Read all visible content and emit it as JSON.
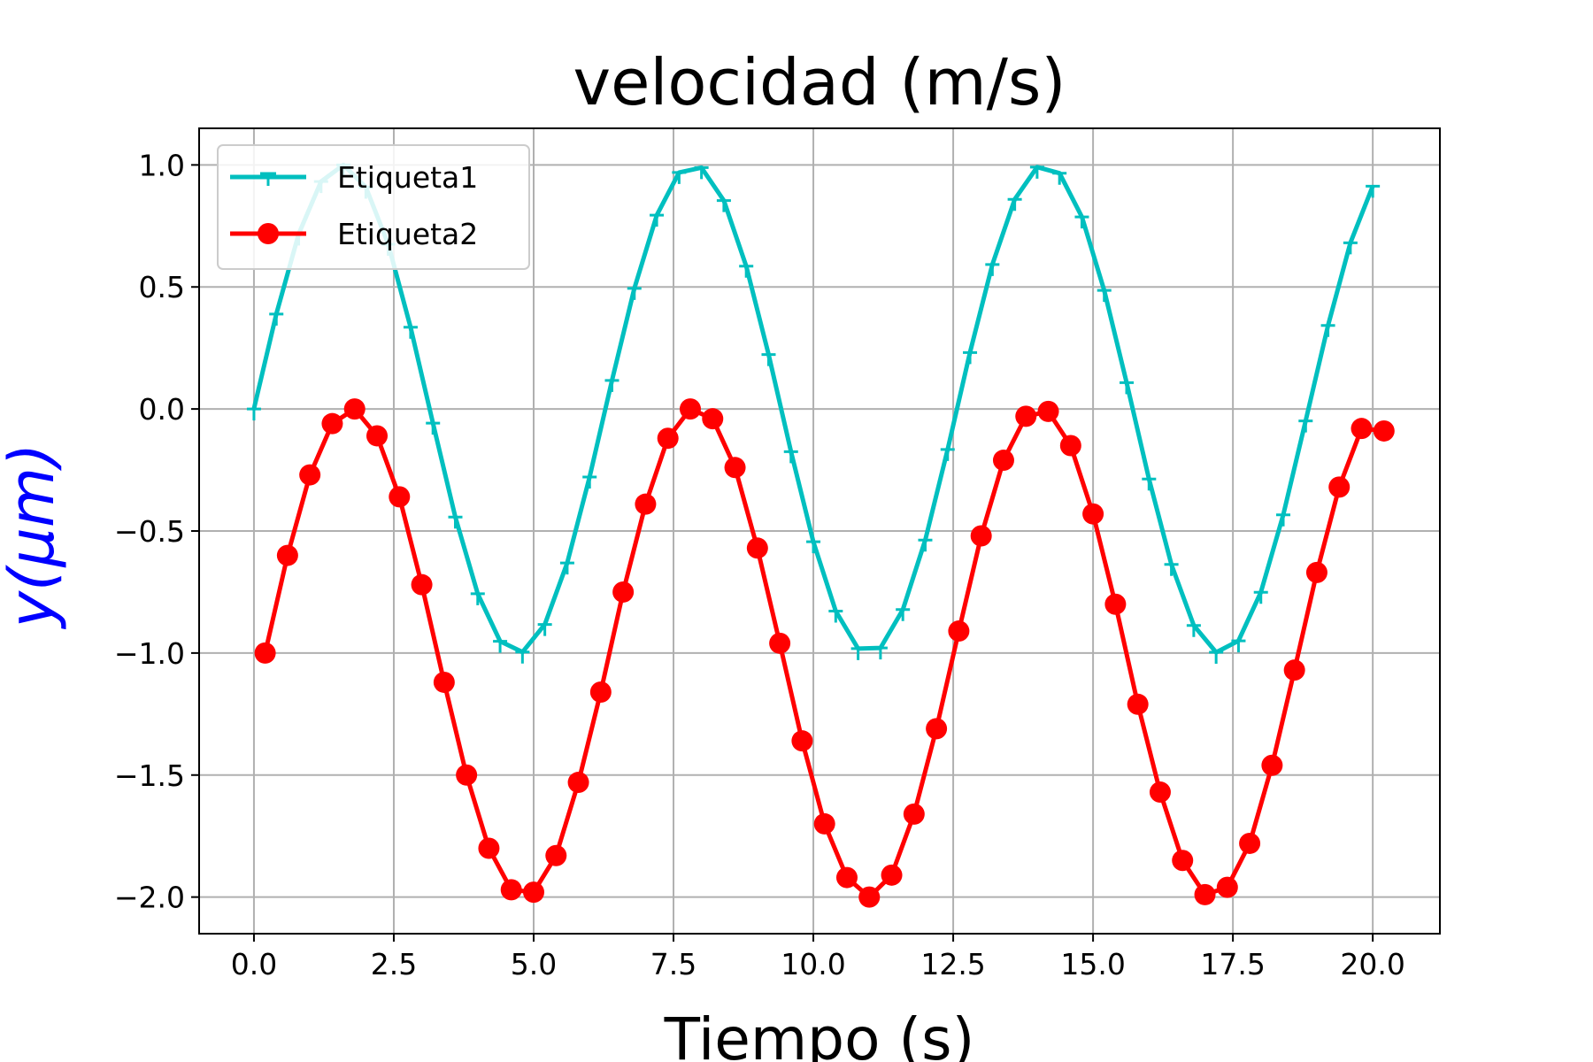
{
  "chart_data": {
    "type": "line",
    "title": "velocidad (m/s)",
    "xlabel": "Tiempo (s)",
    "ylabel": "y(μm)",
    "ylabel_color": "#0000ff",
    "xlim": [
      -0.98,
      21.2
    ],
    "ylim": [
      -2.15,
      1.15
    ],
    "xticks": [
      0.0,
      2.5,
      5.0,
      7.5,
      10.0,
      12.5,
      15.0,
      17.5,
      20.0
    ],
    "xtick_labels": [
      "0.0",
      "2.5",
      "5.0",
      "7.5",
      "10.0",
      "12.5",
      "15.0",
      "17.5",
      "20.0"
    ],
    "yticks": [
      1.0,
      0.5,
      0.0,
      -0.5,
      -1.0,
      -1.5,
      -2.0
    ],
    "ytick_labels": [
      "1.0",
      "0.5",
      "0.0",
      "−0.5",
      "−1.0",
      "−1.5",
      "−2.0"
    ],
    "grid": true,
    "legend_position": "upper-left",
    "series": [
      {
        "name": "Etiqueta1",
        "color": "#00bfbf",
        "marker": "tri-down",
        "x": [
          0,
          0.4,
          0.8,
          1.2,
          1.6,
          2.0,
          2.4,
          2.8,
          3.2,
          3.6,
          4.0,
          4.4,
          4.8,
          5.2,
          5.6,
          6.0,
          6.4,
          6.8,
          7.2,
          7.6,
          8.0,
          8.4,
          8.8,
          9.2,
          9.6,
          10.0,
          10.4,
          10.8,
          11.2,
          11.6,
          12.0,
          12.4,
          12.8,
          13.2,
          13.6,
          14.0,
          14.4,
          14.8,
          15.2,
          15.6,
          16.0,
          16.4,
          16.8,
          17.2,
          17.6,
          18.0,
          18.4,
          18.8,
          19.2,
          19.6,
          20.0
        ],
        "y": [
          0.0,
          0.389,
          0.717,
          0.932,
          1.0,
          0.909,
          0.675,
          0.335,
          -0.058,
          -0.443,
          -0.757,
          -0.952,
          -0.996,
          -0.883,
          -0.631,
          -0.279,
          0.117,
          0.494,
          0.794,
          0.969,
          0.989,
          0.854,
          0.585,
          0.223,
          -0.175,
          -0.544,
          -0.828,
          -0.982,
          -0.979,
          -0.822,
          -0.537,
          -0.166,
          0.231,
          0.592,
          0.859,
          0.991,
          0.966,
          0.787,
          0.486,
          0.108,
          -0.287,
          -0.637,
          -0.887,
          -0.997,
          -0.95,
          -0.751,
          -0.434,
          -0.049,
          0.342,
          0.681,
          0.913
        ]
      },
      {
        "name": "Etiqueta2",
        "color": "#ff0000",
        "marker": "circle",
        "x": [
          0.2,
          0.6,
          1.0,
          1.4,
          1.8,
          2.2,
          2.6,
          3.0,
          3.4,
          3.8,
          4.2,
          4.6,
          5.0,
          5.4,
          5.8,
          6.2,
          6.6,
          7.0,
          7.4,
          7.8,
          8.2,
          8.6,
          9.0,
          9.4,
          9.8,
          10.2,
          10.6,
          11.0,
          11.4,
          11.8,
          12.2,
          12.6,
          13.0,
          13.4,
          13.8,
          14.2,
          14.6,
          15.0,
          15.4,
          15.8,
          16.2,
          16.6,
          17.0,
          17.4,
          17.8,
          18.2,
          18.6,
          19.0,
          19.4,
          19.8,
          20.2
        ],
        "y": [
          -1.0,
          -0.6,
          -0.27,
          -0.06,
          0.0,
          -0.11,
          -0.36,
          -0.72,
          -1.12,
          -1.5,
          -1.8,
          -1.97,
          -1.98,
          -1.83,
          -1.53,
          -1.16,
          -0.75,
          -0.39,
          -0.12,
          0.0,
          -0.04,
          -0.24,
          -0.57,
          -0.96,
          -1.36,
          -1.7,
          -1.92,
          -2.0,
          -1.91,
          -1.66,
          -1.31,
          -0.91,
          -0.52,
          -0.21,
          -0.03,
          -0.01,
          -0.15,
          -0.43,
          -0.8,
          -1.21,
          -1.57,
          -1.85,
          -1.99,
          -1.96,
          -1.78,
          -1.46,
          -1.07,
          -0.67,
          -0.32,
          -0.08,
          -0.09
        ]
      }
    ]
  }
}
